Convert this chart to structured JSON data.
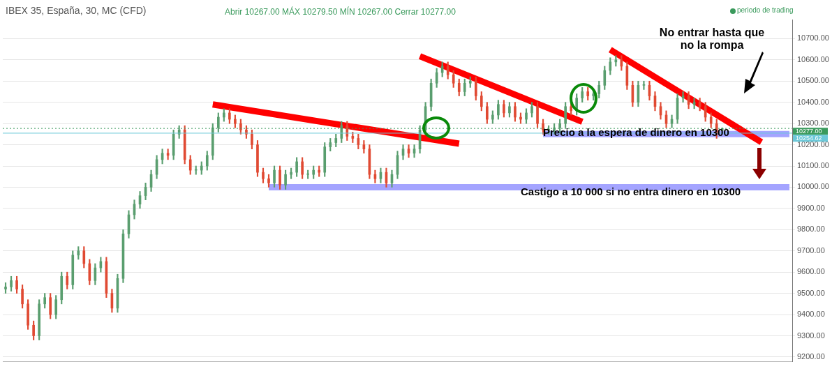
{
  "chart_data": {
    "type": "candlestick",
    "title": "IBEX 35, España, 30, MC (CFD)",
    "annotations": [
      "Abrir 10267.00 MÁX 10279.50 MÍN 10267.00 Cerrar 10277.00",
      "periodo de trading",
      "No entrar hasta que no la rompa",
      "Precio a la espera de dinero en 10300",
      "Castigo a 10 000 si no entra dinero en 10300"
    ],
    "categories": [
      null,
      null,
      null,
      null,
      null,
      null,
      null,
      null,
      null,
      null,
      null,
      null,
      null,
      null,
      null,
      null,
      null,
      null,
      null,
      null,
      null,
      null,
      null,
      null,
      null,
      null,
      null,
      null,
      null,
      null,
      null,
      null,
      null,
      null,
      null,
      null,
      null,
      null,
      null,
      null,
      null,
      null,
      null,
      null,
      null,
      null,
      null,
      null,
      null,
      null,
      null,
      null,
      null,
      null,
      null,
      null,
      null,
      null,
      null,
      null,
      null,
      null,
      null,
      null,
      null,
      null,
      null,
      null,
      null,
      null,
      null,
      null,
      null,
      null,
      null,
      null,
      null,
      null,
      null,
      null,
      null,
      null,
      null,
      null,
      null,
      null,
      null,
      null,
      null,
      null,
      null,
      null,
      null,
      null,
      null,
      null,
      null,
      null,
      null,
      null,
      null,
      null,
      null,
      null,
      null,
      null,
      null,
      null,
      null,
      null,
      null,
      null,
      null,
      null,
      null,
      null,
      null,
      null,
      null,
      null,
      null,
      null,
      null,
      null,
      null,
      null,
      null,
      null,
      null,
      null,
      null,
      null,
      null,
      null,
      null,
      null,
      null,
      null,
      null,
      null,
      null
    ],
    "ohlc": [
      [
        9520,
        9550,
        9500,
        9530
      ],
      [
        9530,
        9580,
        9510,
        9560
      ],
      [
        9560,
        9580,
        9500,
        9520
      ],
      [
        9520,
        9540,
        9430,
        9450
      ],
      [
        9450,
        9470,
        9330,
        9350
      ],
      [
        9350,
        9370,
        9280,
        9300
      ],
      [
        9300,
        9470,
        9280,
        9450
      ],
      [
        9450,
        9500,
        9430,
        9480
      ],
      [
        9480,
        9500,
        9380,
        9400
      ],
      [
        9400,
        9490,
        9380,
        9470
      ],
      [
        9470,
        9600,
        9450,
        9580
      ],
      [
        9580,
        9600,
        9520,
        9540
      ],
      [
        9540,
        9700,
        9520,
        9680
      ],
      [
        9680,
        9720,
        9660,
        9700
      ],
      [
        9700,
        9720,
        9620,
        9640
      ],
      [
        9640,
        9660,
        9540,
        9560
      ],
      [
        9560,
        9640,
        9540,
        9620
      ],
      [
        9620,
        9670,
        9600,
        9650
      ],
      [
        9650,
        9670,
        9480,
        9500
      ],
      [
        9500,
        9520,
        9410,
        9430
      ],
      [
        9430,
        9590,
        9410,
        9570
      ],
      [
        9570,
        9800,
        9550,
        9780
      ],
      [
        9780,
        9890,
        9760,
        9870
      ],
      [
        9870,
        9940,
        9850,
        9920
      ],
      [
        9920,
        9980,
        9900,
        9960
      ],
      [
        9960,
        10020,
        9940,
        10000
      ],
      [
        10000,
        10080,
        9980,
        10060
      ],
      [
        10060,
        10150,
        10040,
        10130
      ],
      [
        10130,
        10180,
        10110,
        10160
      ],
      [
        10160,
        10180,
        10130,
        10150
      ],
      [
        10150,
        10270,
        10130,
        10250
      ],
      [
        10250,
        10290,
        10230,
        10270
      ],
      [
        10270,
        10290,
        10110,
        10130
      ],
      [
        10130,
        10150,
        10060,
        10080
      ],
      [
        10080,
        10100,
        10060,
        10080
      ],
      [
        10080,
        10120,
        10060,
        10100
      ],
      [
        10100,
        10170,
        10080,
        10150
      ],
      [
        10150,
        10300,
        10130,
        10280
      ],
      [
        10280,
        10350,
        10260,
        10330
      ],
      [
        10330,
        10370,
        10310,
        10350
      ],
      [
        10350,
        10370,
        10300,
        10320
      ],
      [
        10320,
        10340,
        10280,
        10300
      ],
      [
        10300,
        10320,
        10250,
        10270
      ],
      [
        10270,
        10290,
        10230,
        10250
      ],
      [
        10250,
        10270,
        10180,
        10200
      ],
      [
        10200,
        10220,
        10050,
        10070
      ],
      [
        10070,
        10090,
        10020,
        10040
      ],
      [
        10040,
        10060,
        10000,
        10020
      ],
      [
        10020,
        10100,
        10000,
        10080
      ],
      [
        10080,
        10100,
        9990,
        10010
      ],
      [
        10010,
        10080,
        9990,
        10060
      ],
      [
        10060,
        10090,
        10040,
        10070
      ],
      [
        10070,
        10140,
        10050,
        10120
      ],
      [
        10120,
        10140,
        10040,
        10060
      ],
      [
        10060,
        10080,
        10040,
        10060
      ],
      [
        10060,
        10100,
        10040,
        10080
      ],
      [
        10080,
        10100,
        10050,
        10070
      ],
      [
        10070,
        10210,
        10050,
        10190
      ],
      [
        10190,
        10230,
        10170,
        10210
      ],
      [
        10210,
        10250,
        10190,
        10230
      ],
      [
        10230,
        10310,
        10210,
        10290
      ],
      [
        10290,
        10310,
        10220,
        10240
      ],
      [
        10240,
        10260,
        10210,
        10230
      ],
      [
        10230,
        10250,
        10180,
        10200
      ],
      [
        10200,
        10220,
        10160,
        10180
      ],
      [
        10180,
        10200,
        10040,
        10060
      ],
      [
        10060,
        10080,
        10020,
        10040
      ],
      [
        10040,
        10090,
        10020,
        10070
      ],
      [
        10070,
        10090,
        10000,
        10020
      ],
      [
        10020,
        10080,
        10000,
        10060
      ],
      [
        10060,
        10170,
        10040,
        10150
      ],
      [
        10150,
        10200,
        10130,
        10180
      ],
      [
        10180,
        10200,
        10140,
        10160
      ],
      [
        10160,
        10200,
        10140,
        10180
      ],
      [
        10180,
        10290,
        10160,
        10270
      ],
      [
        10270,
        10400,
        10250,
        10380
      ],
      [
        10380,
        10510,
        10360,
        10490
      ],
      [
        10490,
        10560,
        10470,
        10540
      ],
      [
        10540,
        10590,
        10520,
        10570
      ],
      [
        10570,
        10590,
        10510,
        10530
      ],
      [
        10530,
        10550,
        10470,
        10490
      ],
      [
        10490,
        10510,
        10430,
        10450
      ],
      [
        10450,
        10510,
        10430,
        10490
      ],
      [
        10490,
        10520,
        10470,
        10500
      ],
      [
        10500,
        10520,
        10410,
        10430
      ],
      [
        10430,
        10450,
        10360,
        10380
      ],
      [
        10380,
        10400,
        10300,
        10320
      ],
      [
        10320,
        10360,
        10300,
        10340
      ],
      [
        10340,
        10410,
        10320,
        10390
      ],
      [
        10390,
        10410,
        10330,
        10350
      ],
      [
        10350,
        10400,
        10330,
        10380
      ],
      [
        10380,
        10400,
        10310,
        10330
      ],
      [
        10330,
        10350,
        10300,
        10320
      ],
      [
        10320,
        10370,
        10300,
        10350
      ],
      [
        10350,
        10400,
        10330,
        10380
      ],
      [
        10380,
        10400,
        10280,
        10300
      ],
      [
        10300,
        10320,
        10250,
        10270
      ],
      [
        10270,
        10290,
        10250,
        10270
      ],
      [
        10270,
        10300,
        10250,
        10280
      ],
      [
        10280,
        10320,
        10260,
        10300
      ],
      [
        10300,
        10400,
        10280,
        10380
      ],
      [
        10380,
        10400,
        10340,
        10360
      ],
      [
        10360,
        10440,
        10340,
        10420
      ],
      [
        10420,
        10470,
        10400,
        10450
      ],
      [
        10450,
        10470,
        10410,
        10430
      ],
      [
        10430,
        10460,
        10410,
        10440
      ],
      [
        10440,
        10500,
        10420,
        10480
      ],
      [
        10480,
        10570,
        10460,
        10550
      ],
      [
        10550,
        10610,
        10530,
        10590
      ],
      [
        10590,
        10620,
        10570,
        10600
      ],
      [
        10600,
        10620,
        10550,
        10570
      ],
      [
        10570,
        10590,
        10460,
        10480
      ],
      [
        10480,
        10500,
        10380,
        10400
      ],
      [
        10400,
        10500,
        10380,
        10480
      ],
      [
        10480,
        10500,
        10460,
        10480
      ],
      [
        10480,
        10500,
        10410,
        10430
      ],
      [
        10430,
        10450,
        10360,
        10380
      ],
      [
        10380,
        10400,
        10320,
        10340
      ],
      [
        10340,
        10360,
        10280,
        10300
      ],
      [
        10300,
        10340,
        10280,
        10320
      ],
      [
        10320,
        10440,
        10300,
        10420
      ],
      [
        10420,
        10450,
        10400,
        10430
      ],
      [
        10430,
        10450,
        10370,
        10390
      ],
      [
        10390,
        10420,
        10370,
        10400
      ],
      [
        10400,
        10420,
        10360,
        10380
      ],
      [
        10380,
        10400,
        10310,
        10330
      ],
      [
        10330,
        10350,
        10280,
        10300
      ],
      [
        10300,
        10320,
        10230,
        10250
      ],
      [
        10267,
        10279.5,
        10267,
        10277
      ],
      null,
      null,
      null,
      null,
      null,
      null,
      null,
      null,
      null,
      null,
      null,
      null
    ],
    "series": [
      {
        "type": "line",
        "color": "#ff0000",
        "values": [
          null,
          null,
          null,
          null,
          null,
          null,
          null,
          null,
          null,
          null,
          null,
          null,
          null,
          null,
          null,
          null,
          null,
          null,
          null,
          null,
          null,
          null,
          null,
          null,
          null,
          null,
          null,
          null,
          null,
          null,
          null,
          null,
          null,
          null,
          null,
          null,
          null,
          10390,
          null,
          null,
          null,
          null,
          null,
          null,
          null,
          null,
          null,
          null,
          null,
          null,
          null,
          null,
          null,
          null,
          null,
          null,
          null,
          null,
          null,
          null,
          null,
          null,
          null,
          null,
          null,
          null,
          null,
          null,
          null,
          null,
          null,
          null,
          null,
          null,
          null,
          null,
          null,
          null,
          null,
          null,
          null,
          10205,
          null,
          null,
          null,
          null,
          null,
          null,
          null,
          null,
          null,
          null,
          null,
          null,
          null,
          null,
          null,
          null,
          null,
          null,
          null,
          null,
          null,
          null,
          null,
          null,
          null,
          null,
          null,
          null,
          null,
          null,
          null,
          null,
          null,
          null,
          null,
          null,
          null,
          null,
          null,
          null,
          null,
          null,
          null,
          null,
          null,
          null,
          null,
          null,
          null,
          null,
          null,
          null,
          null,
          null,
          null,
          null,
          null,
          null,
          null
        ]
      },
      {
        "type": "line",
        "color": "#ff0000",
        "values": [
          null,
          null,
          null,
          null,
          null,
          null,
          null,
          null,
          null,
          null,
          null,
          null,
          null,
          null,
          null,
          null,
          null,
          null,
          null,
          null,
          null,
          null,
          null,
          null,
          null,
          null,
          null,
          null,
          null,
          null,
          null,
          null,
          null,
          null,
          null,
          null,
          null,
          null,
          null,
          null,
          null,
          null,
          null,
          null,
          null,
          null,
          null,
          null,
          null,
          null,
          null,
          null,
          null,
          null,
          null,
          null,
          null,
          null,
          null,
          null,
          null,
          null,
          null,
          null,
          null,
          null,
          null,
          null,
          null,
          null,
          null,
          null,
          null,
          null,
          10617,
          null,
          null,
          null,
          null,
          null,
          null,
          null,
          null,
          null,
          null,
          null,
          null,
          null,
          null,
          null,
          null,
          null,
          null,
          null,
          null,
          null,
          null,
          null,
          null,
          null,
          null,
          null,
          null,
          10308,
          null,
          null,
          null,
          null,
          null,
          null,
          null,
          null,
          null,
          null,
          null,
          null,
          null,
          null,
          null,
          null,
          null,
          null,
          null,
          null,
          null,
          null,
          null,
          null,
          null,
          null,
          null,
          null,
          null,
          null,
          null,
          null,
          null,
          null,
          null,
          null,
          null
        ]
      },
      {
        "type": "line",
        "color": "#ff0000",
        "values": [
          null,
          null,
          null,
          null,
          null,
          null,
          null,
          null,
          null,
          null,
          null,
          null,
          null,
          null,
          null,
          null,
          null,
          null,
          null,
          null,
          null,
          null,
          null,
          null,
          null,
          null,
          null,
          null,
          null,
          null,
          null,
          null,
          null,
          null,
          null,
          null,
          null,
          null,
          null,
          null,
          null,
          null,
          null,
          null,
          null,
          null,
          null,
          null,
          null,
          null,
          null,
          null,
          null,
          null,
          null,
          null,
          null,
          null,
          null,
          null,
          null,
          null,
          null,
          null,
          null,
          null,
          null,
          null,
          null,
          null,
          null,
          null,
          null,
          null,
          null,
          null,
          null,
          null,
          null,
          null,
          null,
          null,
          null,
          null,
          null,
          null,
          null,
          null,
          null,
          null,
          null,
          null,
          null,
          null,
          null,
          null,
          null,
          null,
          null,
          null,
          null,
          null,
          null,
          null,
          null,
          null,
          null,
          null,
          10648,
          null,
          null,
          null,
          null,
          null,
          null,
          null,
          null,
          null,
          null,
          null,
          null,
          null,
          null,
          null,
          null,
          null,
          null,
          null,
          null,
          null,
          null,
          null,
          null,
          null,
          null,
          10212,
          null,
          null,
          null,
          null,
          null
        ]
      },
      {
        "type": "line",
        "color": "#a4a4ff",
        "values": [
          null,
          null,
          null,
          null,
          null,
          null,
          null,
          null,
          null,
          null,
          null,
          null,
          null,
          null,
          null,
          null,
          null,
          null,
          null,
          null,
          null,
          null,
          null,
          null,
          null,
          null,
          null,
          null,
          null,
          null,
          null,
          null,
          null,
          null,
          null,
          null,
          null,
          null,
          null,
          null,
          null,
          null,
          null,
          null,
          null,
          null,
          null,
          null,
          null,
          null,
          null,
          null,
          null,
          null,
          null,
          null,
          null,
          null,
          null,
          null,
          null,
          null,
          null,
          null,
          null,
          null,
          null,
          null,
          null,
          null,
          null,
          null,
          null,
          null,
          null,
          null,
          null,
          null,
          null,
          null,
          null,
          null,
          null,
          null,
          null,
          null,
          null,
          null,
          null,
          null,
          null,
          null,
          null,
          null,
          null,
          null,
          10250,
          null,
          null,
          null,
          null,
          null,
          null,
          null,
          null,
          null,
          null,
          null,
          null,
          null,
          null,
          null,
          null,
          null,
          null,
          null,
          null,
          null,
          null,
          null,
          null,
          null,
          null,
          null,
          null,
          null,
          null,
          null,
          null,
          null,
          null,
          null,
          null,
          null,
          null,
          null,
          null,
          null,
          null,
          null,
          10250
        ]
      },
      {
        "type": "line",
        "color": "#a4a4ff",
        "values": [
          null,
          null,
          null,
          null,
          null,
          null,
          null,
          null,
          null,
          null,
          null,
          null,
          null,
          null,
          null,
          null,
          null,
          null,
          null,
          null,
          null,
          null,
          null,
          null,
          null,
          null,
          null,
          null,
          null,
          null,
          null,
          null,
          null,
          null,
          null,
          null,
          null,
          null,
          null,
          null,
          null,
          null,
          null,
          null,
          null,
          null,
          null,
          10000,
          null,
          null,
          null,
          null,
          null,
          null,
          null,
          null,
          null,
          null,
          null,
          null,
          null,
          null,
          null,
          null,
          null,
          null,
          null,
          null,
          null,
          null,
          null,
          null,
          null,
          null,
          null,
          null,
          null,
          null,
          null,
          null,
          null,
          null,
          null,
          null,
          null,
          null,
          null,
          null,
          null,
          null,
          null,
          null,
          null,
          null,
          null,
          null,
          null,
          null,
          null,
          null,
          null,
          null,
          null,
          null,
          null,
          null,
          null,
          null,
          null,
          null,
          null,
          null,
          null,
          null,
          null,
          null,
          null,
          null,
          null,
          null,
          null,
          null,
          null,
          null,
          null,
          null,
          null,
          null,
          null,
          null,
          null,
          null,
          null,
          null,
          null,
          null,
          null,
          null,
          null,
          null,
          10000
        ]
      }
    ],
    "ref_lines": [
      {
        "axis": "y",
        "value": 10277,
        "label": "10277.00",
        "color": "#3a9a5c",
        "line_style": "dotted"
      },
      {
        "axis": "y",
        "value": 10254.62,
        "label": "10254.62",
        "color": "#6cc8d8",
        "line_style": "solid"
      }
    ],
    "ylim": [
      9180,
      10790
    ],
    "yticks": [
      {
        "value": 9200,
        "label": "9200.00"
      },
      {
        "value": 9300,
        "label": "9300.00"
      },
      {
        "value": 9400,
        "label": "9400.00"
      },
      {
        "value": 9500,
        "label": "9500.00"
      },
      {
        "value": 9600,
        "label": "9600.00"
      },
      {
        "value": 9700,
        "label": "9700.00"
      },
      {
        "value": 9800,
        "label": "9800.00"
      },
      {
        "value": 9900,
        "label": "9900.00"
      },
      {
        "value": 10000,
        "label": "10000.00"
      },
      {
        "value": 10100,
        "label": "10100.00"
      },
      {
        "value": 10200,
        "label": "10200.00"
      },
      {
        "value": 10300,
        "label": "10300.00"
      },
      {
        "value": 10400,
        "label": "10400.00"
      },
      {
        "value": 10500,
        "label": "10500.00"
      },
      {
        "value": 10600,
        "label": "10600.00"
      },
      {
        "value": 10700,
        "label": "10700.00"
      }
    ],
    "grid": "y",
    "tick_labels": "y"
  }
}
